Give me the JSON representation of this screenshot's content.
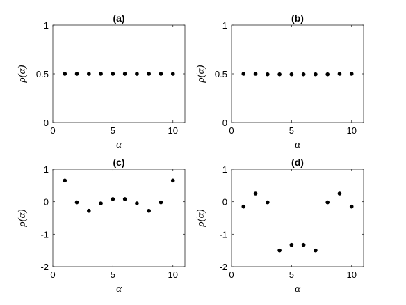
{
  "chart_data": [
    {
      "type": "scatter",
      "title": "(a)",
      "xlabel": "α",
      "ylabel": "ρ(α)",
      "xlim": [
        0,
        11
      ],
      "ylim": [
        0,
        1
      ],
      "xticks": [
        0,
        5,
        10
      ],
      "yticks": [
        0,
        0.5,
        1
      ],
      "xtick_labels": [
        "0",
        "5",
        "10"
      ],
      "ytick_labels": [
        "0",
        "0.5",
        "1"
      ],
      "grid": false,
      "x": [
        1,
        2,
        3,
        4,
        5,
        6,
        7,
        8,
        9,
        10
      ],
      "y": [
        0.5,
        0.5,
        0.5,
        0.5,
        0.5,
        0.5,
        0.5,
        0.5,
        0.5,
        0.5
      ],
      "marker_color": "#000000"
    },
    {
      "type": "scatter",
      "title": "(b)",
      "xlabel": "α",
      "ylabel": "ρ(α)",
      "xlim": [
        0,
        11
      ],
      "ylim": [
        0,
        1
      ],
      "xticks": [
        0,
        5,
        10
      ],
      "yticks": [
        0,
        0.5,
        1
      ],
      "xtick_labels": [
        "0",
        "5",
        "10"
      ],
      "ytick_labels": [
        "0",
        "0.5",
        "1"
      ],
      "grid": false,
      "x": [
        1,
        2,
        3,
        4,
        5,
        6,
        7,
        8,
        9,
        10
      ],
      "y": [
        0.5,
        0.5,
        0.495,
        0.495,
        0.495,
        0.495,
        0.495,
        0.495,
        0.5,
        0.5
      ],
      "marker_color": "#000000"
    },
    {
      "type": "scatter",
      "title": "(c)",
      "xlabel": "α",
      "ylabel": "ρ(α)",
      "xlim": [
        0,
        11
      ],
      "ylim": [
        -2,
        1
      ],
      "xticks": [
        0,
        5,
        10
      ],
      "yticks": [
        -2,
        -1,
        0,
        1
      ],
      "xtick_labels": [
        "0",
        "5",
        "10"
      ],
      "ytick_labels": [
        "-2",
        "-1",
        "0",
        "1"
      ],
      "grid": false,
      "x": [
        1,
        2,
        3,
        4,
        5,
        6,
        7,
        8,
        9,
        10
      ],
      "y": [
        0.65,
        -0.02,
        -0.28,
        -0.05,
        0.08,
        0.08,
        -0.05,
        -0.28,
        -0.02,
        0.65
      ],
      "marker_color": "#000000"
    },
    {
      "type": "scatter",
      "title": "(d)",
      "xlabel": "α",
      "ylabel": "ρ(α)",
      "xlim": [
        0,
        11
      ],
      "ylim": [
        -2,
        1
      ],
      "xticks": [
        0,
        5,
        10
      ],
      "yticks": [
        -2,
        -1,
        0,
        1
      ],
      "xtick_labels": [
        "0",
        "5",
        "10"
      ],
      "ytick_labels": [
        "-2",
        "-1",
        "0",
        "1"
      ],
      "grid": false,
      "x": [
        1,
        2,
        3,
        4,
        5,
        6,
        7,
        8,
        9,
        10
      ],
      "y": [
        -0.15,
        0.25,
        -0.02,
        -1.5,
        -1.33,
        -1.33,
        -1.5,
        -0.02,
        0.25,
        -0.15
      ],
      "marker_color": "#000000"
    }
  ]
}
